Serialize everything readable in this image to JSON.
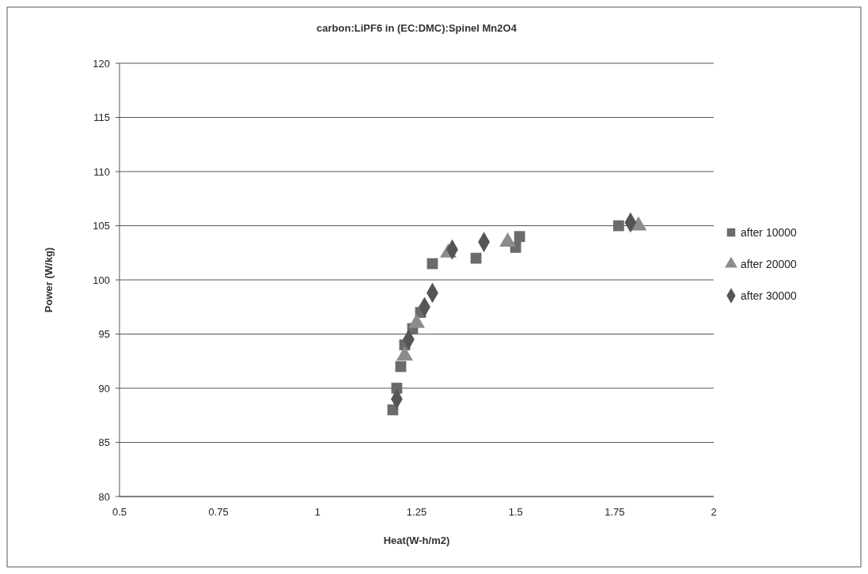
{
  "chart_data": {
    "type": "scatter",
    "title": "carbon:LiPF6 in (EC:DMC):Spinel Mn2O4",
    "xlabel": "Heat(W-h/m2)",
    "ylabel": "Power (W/kg)",
    "xlim": [
      0.5,
      2
    ],
    "xticks": [
      0.5,
      0.75,
      1,
      1.25,
      1.5,
      1.75,
      2
    ],
    "ylim": [
      80,
      120
    ],
    "yticks": [
      80,
      85,
      90,
      95,
      100,
      105,
      110,
      115,
      120
    ],
    "grid": "y",
    "legend": "right",
    "series": [
      {
        "name": "after 10000",
        "color": "#6b6b6b",
        "marker": "square",
        "x": [
          1.19,
          1.2,
          1.21,
          1.22,
          1.24,
          1.26,
          1.29,
          1.4,
          1.5,
          1.51,
          1.76
        ],
        "values": [
          88,
          90,
          92,
          94,
          95.5,
          97,
          101.5,
          102,
          103,
          104,
          105
        ]
      },
      {
        "name": "after 20000",
        "color": "#8c8c8c",
        "marker": "triangle",
        "x": [
          1.22,
          1.25,
          1.33,
          1.48,
          1.81
        ],
        "values": [
          93,
          96,
          102.5,
          103.5,
          105
        ]
      },
      {
        "name": "after 30000",
        "color": "#555555",
        "marker": "diamond",
        "x": [
          1.2,
          1.23,
          1.27,
          1.29,
          1.34,
          1.42,
          1.79
        ],
        "values": [
          89,
          94.5,
          97.5,
          98.8,
          102.8,
          103.5,
          105.3
        ]
      }
    ]
  }
}
